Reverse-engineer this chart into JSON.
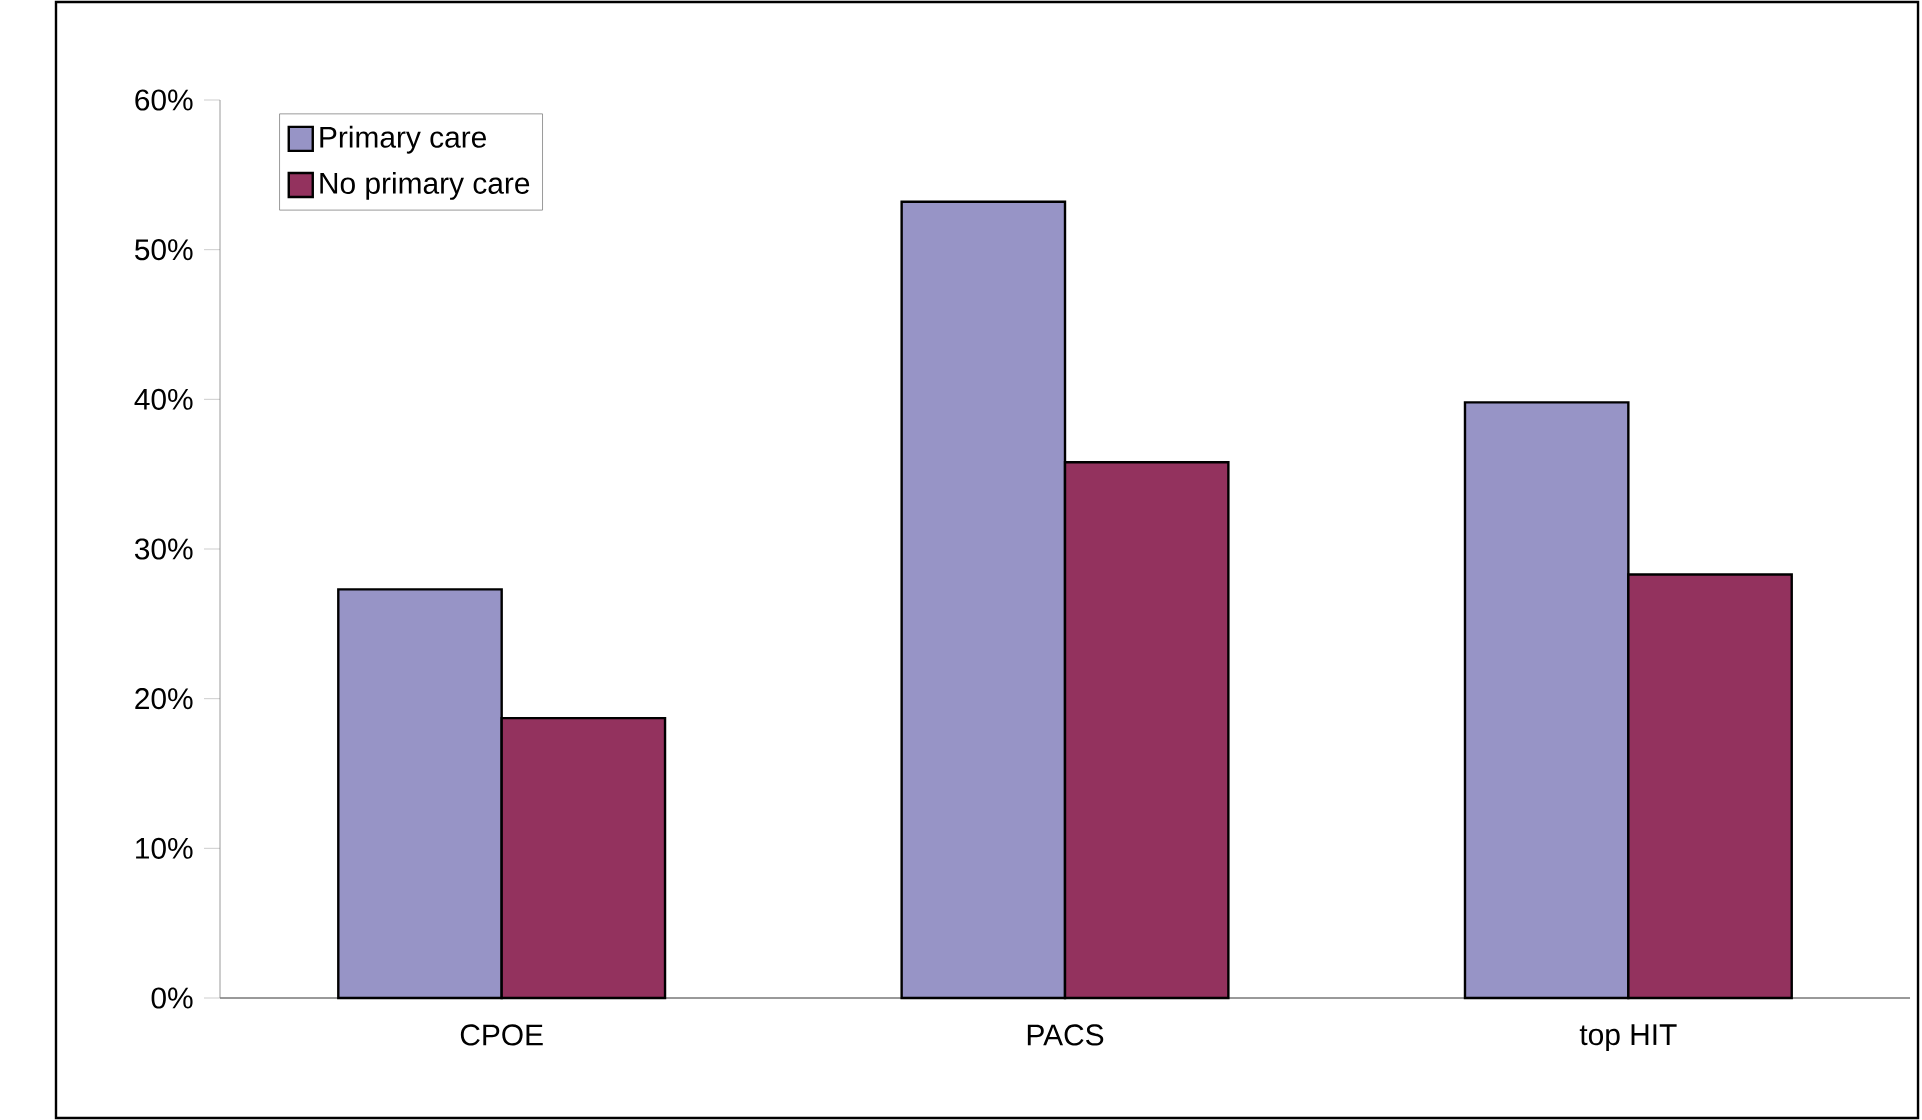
{
  "chart_data": {
    "type": "bar",
    "categories": [
      "CPOE",
      "PACS",
      "top HIT"
    ],
    "series": [
      {
        "name": "Primary care",
        "color": "#9794c6",
        "values": [
          27.3,
          53.2,
          39.8
        ]
      },
      {
        "name": "No primary care",
        "color": "#93325e",
        "values": [
          18.7,
          35.8,
          28.3
        ]
      }
    ],
    "ylim": [
      0,
      60
    ],
    "yticks": [
      {
        "value": 0,
        "label": "0%"
      },
      {
        "value": 10,
        "label": "10%"
      },
      {
        "value": 20,
        "label": "20%"
      },
      {
        "value": 30,
        "label": "30%"
      },
      {
        "value": 40,
        "label": "40%"
      },
      {
        "value": 50,
        "label": "50%"
      },
      {
        "value": 60,
        "label": "60%"
      }
    ],
    "legend": "top left"
  }
}
